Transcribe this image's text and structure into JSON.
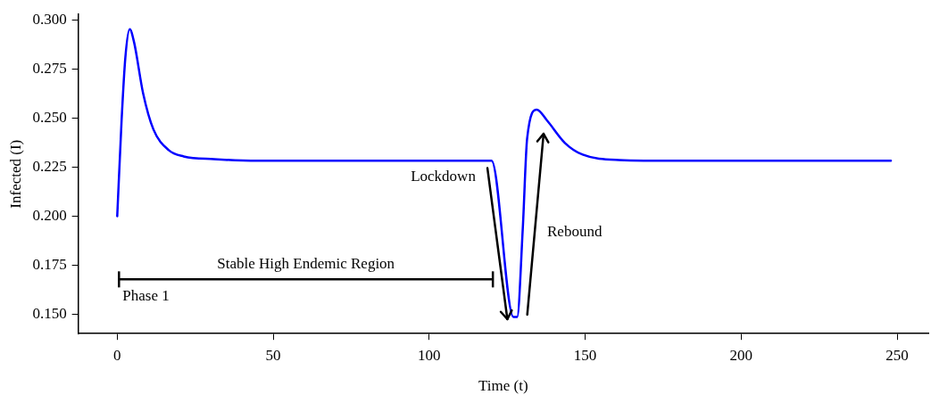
{
  "chart_data": {
    "type": "line",
    "xlabel": "Time (t)",
    "ylabel": "Infected (I)",
    "xlim": [
      -12.5,
      260
    ],
    "ylim": [
      0.14,
      0.303
    ],
    "xticks": [
      0,
      50,
      100,
      150,
      200,
      250
    ],
    "yticks": [
      {
        "value": 0.15,
        "label": "0.150"
      },
      0.175,
      {
        "value": 0.2,
        "label": "0.200"
      },
      0.225,
      {
        "value": 0.25,
        "label": "0.250"
      },
      0.275,
      {
        "value": 0.3,
        "label": "0.300"
      }
    ],
    "grid": false,
    "legend": false,
    "marker": "none",
    "line_style": "solid",
    "series": [
      {
        "color": "#0000ff",
        "x": [
          0,
          1.4,
          2.6,
          4,
          5.4,
          8.3,
          11.6,
          16.5,
          21.3,
          31,
          45,
          120,
          127,
          128.2,
          130,
          131.4,
          134.5,
          137.7,
          143.5,
          149.2,
          160.8,
          180,
          248
        ],
        "values": [
          0.2,
          0.249,
          0.281,
          0.2955,
          0.2888,
          0.2627,
          0.2443,
          0.2337,
          0.2305,
          0.2291,
          0.2283,
          0.2283,
          0.1485,
          0.1485,
          0.1937,
          0.2397,
          0.2544,
          0.249,
          0.2374,
          0.2314,
          0.2287,
          0.2283,
          0.2283
        ]
      }
    ],
    "annotations": [
      "Lockdown",
      "Rebound",
      "Stable High Endemic Region",
      "Phase 1"
    ]
  }
}
